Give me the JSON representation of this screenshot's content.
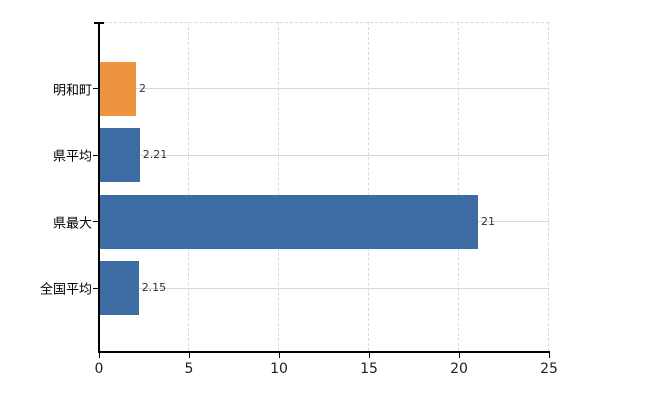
{
  "chart_data": {
    "type": "bar",
    "orientation": "horizontal",
    "title": "",
    "xlabel": "",
    "ylabel": "",
    "categories": [
      "明和町",
      "県平均",
      "県最大",
      "全国平均"
    ],
    "values": [
      2,
      2.21,
      21,
      2.15
    ],
    "value_labels": [
      "2",
      "2.21",
      "21",
      "2.15"
    ],
    "bar_colors": [
      "#ef943e",
      "#3d6ca5",
      "#3d6ca5",
      "#3d6ca5"
    ],
    "highlight_category": "明和町",
    "xlim": [
      0,
      25
    ],
    "x_ticks": [
      "0",
      "5",
      "10",
      "15",
      "20",
      "25"
    ],
    "grid": true,
    "legend": false
  },
  "colors": {
    "bar_default": "#3d6ca5",
    "bar_highlight": "#ef943e",
    "axis": "#000000",
    "gridline_horizontal": "#d5dad5",
    "gridline_vertical": "#d9d9d9",
    "tick_label": "#222222",
    "category_label": "#000000",
    "value_label": "#333333",
    "background": "#ffffff"
  }
}
